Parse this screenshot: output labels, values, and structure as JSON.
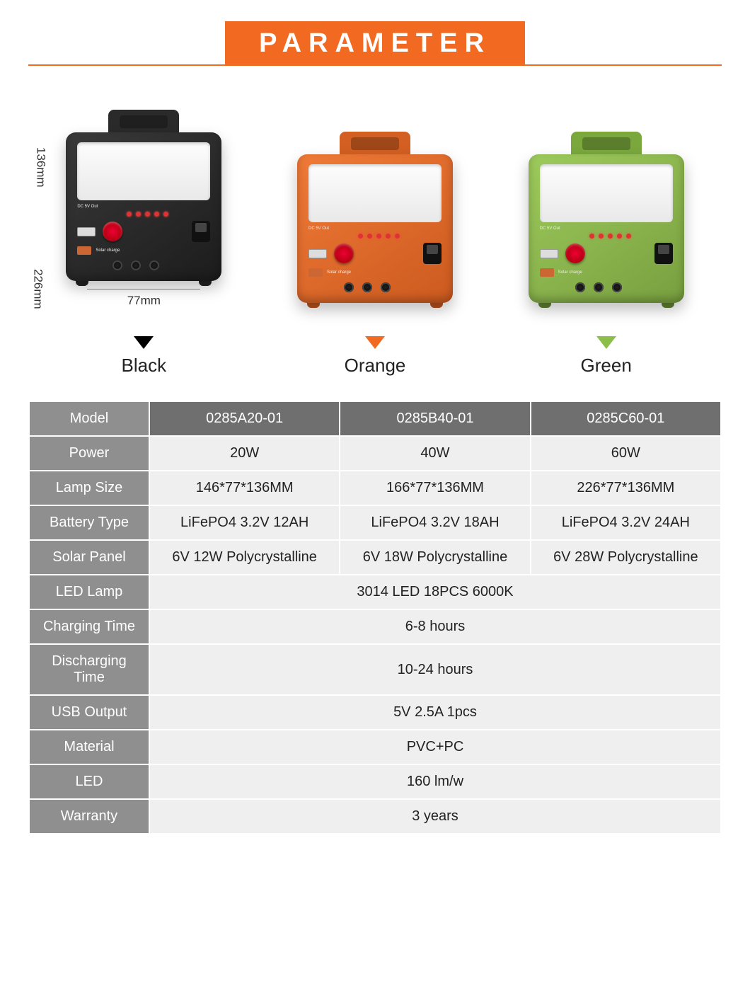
{
  "accent_color": "#f26a21",
  "title": "PARAMETER",
  "dimensions": {
    "height": "136mm",
    "depth": "226mm",
    "width": "77mm"
  },
  "device_labels": {
    "dc5v": "DC 5V Out",
    "on": "ON",
    "off": "OFF",
    "solar": "Solar charge",
    "dc12v": "Dc 12V Out"
  },
  "variants": [
    {
      "name": "Black",
      "color_class": "black",
      "tri_class": "",
      "foot_class": ""
    },
    {
      "name": "Orange",
      "color_class": "orange",
      "tri_class": "orange",
      "foot_class": "orange"
    },
    {
      "name": "Green",
      "color_class": "green",
      "tri_class": "green",
      "foot_class": "green"
    }
  ],
  "table": {
    "header_row": {
      "label": "Model",
      "cells": [
        "0285A20-01",
        "0285B40-01",
        "0285C60-01"
      ]
    },
    "rows": [
      {
        "label": "Power",
        "cells": [
          "20W",
          "40W",
          "60W"
        ]
      },
      {
        "label": "Lamp Size",
        "cells": [
          "146*77*136MM",
          "166*77*136MM",
          "226*77*136MM"
        ]
      },
      {
        "label": "Battery Type",
        "cells": [
          "LiFePO4 3.2V 12AH",
          "LiFePO4 3.2V 18AH",
          "LiFePO4 3.2V 24AH"
        ]
      },
      {
        "label": "Solar Panel",
        "cells": [
          "6V 12W Polycrystalline",
          "6V 18W Polycrystalline",
          "6V 28W Polycrystalline"
        ]
      },
      {
        "label": "LED Lamp",
        "span": "3014 LED 18PCS 6000K"
      },
      {
        "label": "Charging Time",
        "span": "6-8 hours"
      },
      {
        "label": "Discharging Time",
        "span": "10-24 hours"
      },
      {
        "label": "USB Output",
        "span": "5V 2.5A 1pcs"
      },
      {
        "label": "Material",
        "span": "PVC+PC"
      },
      {
        "label": "LED",
        "span": "160 lm/w"
      },
      {
        "label": "Warranty",
        "span": "3 years"
      }
    ]
  }
}
